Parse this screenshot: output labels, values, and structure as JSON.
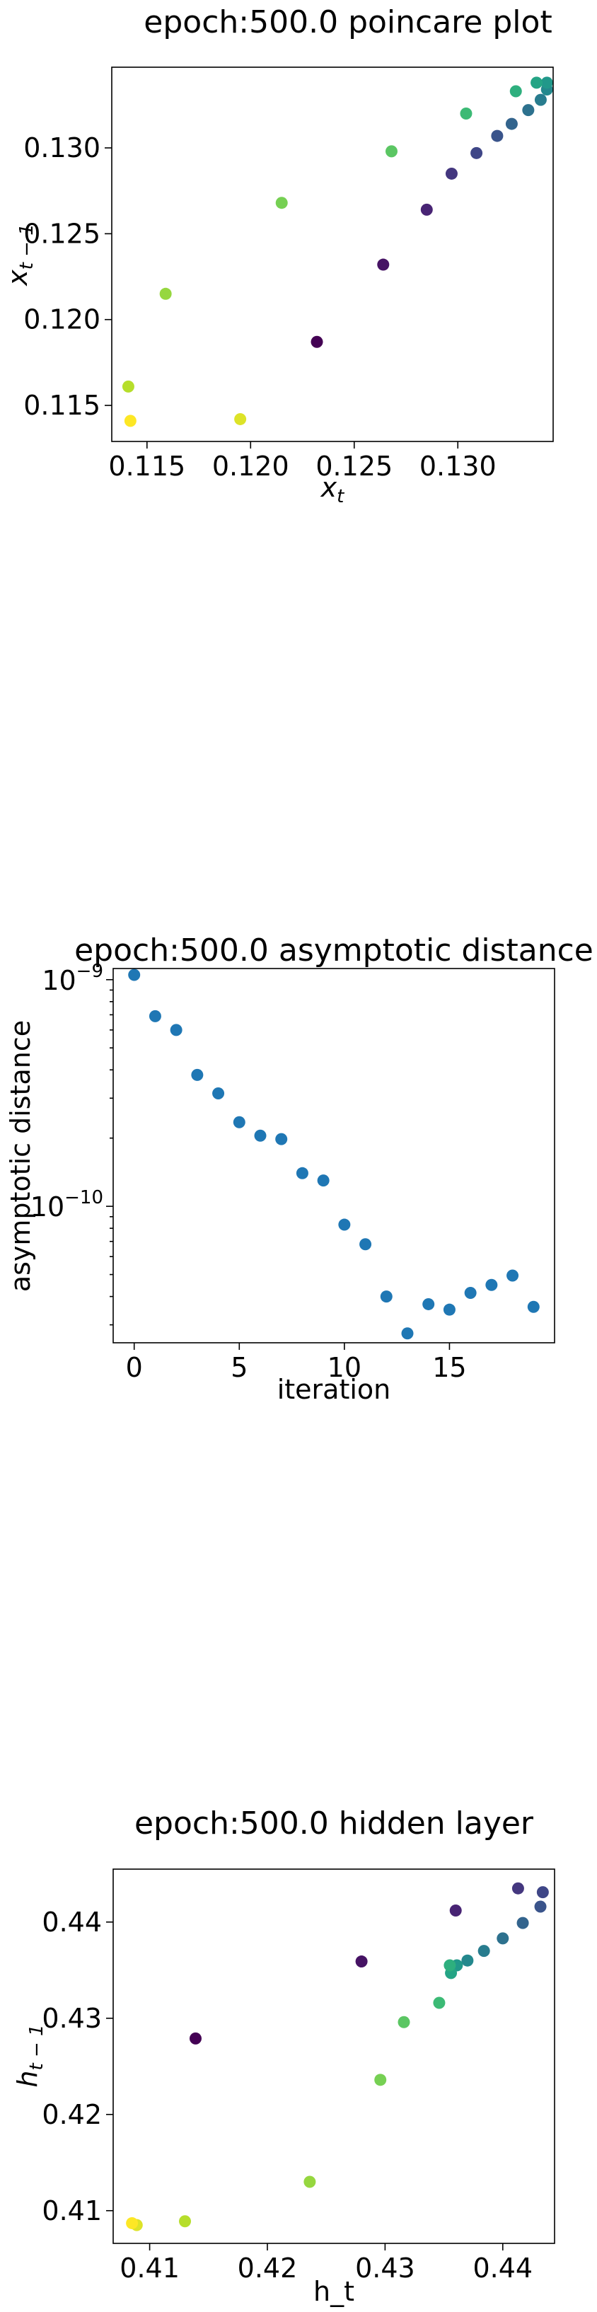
{
  "chart_data": [
    {
      "type": "scatter",
      "title": "epoch:500.0 poincare plot",
      "xlabel": "x",
      "xlabel_sub": "t",
      "ylabel": "x",
      "ylabel_sub": "t − 1",
      "xlim": [
        0.1133,
        0.1346
      ],
      "ylim": [
        0.1129,
        0.1347
      ],
      "xticks": [
        {
          "v": 0.115,
          "label": "0.115"
        },
        {
          "v": 0.12,
          "label": "0.120"
        },
        {
          "v": 0.125,
          "label": "0.125"
        },
        {
          "v": 0.13,
          "label": "0.130"
        }
      ],
      "yticks": [
        {
          "v": 0.115,
          "label": "0.115"
        },
        {
          "v": 0.12,
          "label": "0.120"
        },
        {
          "v": 0.125,
          "label": "0.125"
        },
        {
          "v": 0.13,
          "label": "0.130"
        }
      ],
      "colormap": "viridis",
      "points": [
        {
          "x": 0.1232,
          "y": 0.1187,
          "c": 0.0
        },
        {
          "x": 0.1264,
          "y": 0.1232,
          "c": 0.05
        },
        {
          "x": 0.1285,
          "y": 0.1264,
          "c": 0.1
        },
        {
          "x": 0.1297,
          "y": 0.1285,
          "c": 0.16
        },
        {
          "x": 0.1309,
          "y": 0.1297,
          "c": 0.21
        },
        {
          "x": 0.1319,
          "y": 0.1307,
          "c": 0.26
        },
        {
          "x": 0.1326,
          "y": 0.1314,
          "c": 0.32
        },
        {
          "x": 0.1334,
          "y": 0.1322,
          "c": 0.37
        },
        {
          "x": 0.134,
          "y": 0.1328,
          "c": 0.42
        },
        {
          "x": 0.1343,
          "y": 0.1334,
          "c": 0.47
        },
        {
          "x": 0.1343,
          "y": 0.1338,
          "c": 0.53
        },
        {
          "x": 0.1338,
          "y": 0.1338,
          "c": 0.58
        },
        {
          "x": 0.1328,
          "y": 0.1333,
          "c": 0.63
        },
        {
          "x": 0.1304,
          "y": 0.132,
          "c": 0.68
        },
        {
          "x": 0.1268,
          "y": 0.1298,
          "c": 0.74
        },
        {
          "x": 0.1215,
          "y": 0.1268,
          "c": 0.79
        },
        {
          "x": 0.1159,
          "y": 0.1215,
          "c": 0.84
        },
        {
          "x": 0.1141,
          "y": 0.1161,
          "c": 0.89
        },
        {
          "x": 0.1195,
          "y": 0.1142,
          "c": 0.95
        },
        {
          "x": 0.1142,
          "y": 0.1141,
          "c": 1.0
        }
      ]
    },
    {
      "type": "scatter",
      "title": "epoch:500.0 asymptotic distance",
      "xlabel": "iteration",
      "ylabel": "asymptotic distance",
      "yscale": "log",
      "xlim": [
        -1.0,
        20.0
      ],
      "ylim": [
        2.5e-11,
        1.12e-09
      ],
      "xticks": [
        {
          "v": 0,
          "label": "0"
        },
        {
          "v": 5,
          "label": "5"
        },
        {
          "v": 10,
          "label": "10"
        },
        {
          "v": 15,
          "label": "15"
        }
      ],
      "yticks": [
        {
          "v": 1e-10,
          "base": "10",
          "exp": "−10"
        },
        {
          "v": 1e-09,
          "base": "10",
          "exp": "−9"
        }
      ],
      "color": "#1f77b4",
      "x": [
        0,
        1,
        2,
        3,
        4,
        5,
        6,
        7,
        8,
        9,
        10,
        11,
        12,
        13,
        14,
        15,
        16,
        17,
        18,
        19
      ],
      "y": [
        1.05e-09,
        6.9e-10,
        6e-10,
        3.8e-10,
        3.15e-10,
        2.35e-10,
        2.05e-10,
        1.98e-10,
        1.4e-10,
        1.3e-10,
        8.3e-11,
        6.8e-11,
        4e-11,
        2.75e-11,
        3.7e-11,
        3.5e-11,
        4.15e-11,
        4.5e-11,
        4.95e-11,
        3.6e-11
      ]
    },
    {
      "type": "scatter",
      "title": "epoch:500.0 hidden layer",
      "xlabel": "h_t",
      "ylabel": "h",
      "ylabel_sub": "t − 1",
      "xlim": [
        0.4069,
        0.4444
      ],
      "ylim": [
        0.4066,
        0.4455
      ],
      "xticks": [
        {
          "v": 0.41,
          "label": "0.41"
        },
        {
          "v": 0.42,
          "label": "0.42"
        },
        {
          "v": 0.43,
          "label": "0.43"
        },
        {
          "v": 0.44,
          "label": "0.44"
        }
      ],
      "yticks": [
        {
          "v": 0.41,
          "label": "0.41"
        },
        {
          "v": 0.42,
          "label": "0.42"
        },
        {
          "v": 0.43,
          "label": "0.43"
        },
        {
          "v": 0.44,
          "label": "0.44"
        }
      ],
      "colormap": "viridis",
      "points": [
        {
          "x": 0.4139,
          "y": 0.4279,
          "c": 0.0
        },
        {
          "x": 0.428,
          "y": 0.4359,
          "c": 0.05
        },
        {
          "x": 0.436,
          "y": 0.4412,
          "c": 0.1
        },
        {
          "x": 0.4413,
          "y": 0.4435,
          "c": 0.16
        },
        {
          "x": 0.4434,
          "y": 0.4431,
          "c": 0.21
        },
        {
          "x": 0.4432,
          "y": 0.4416,
          "c": 0.26
        },
        {
          "x": 0.4417,
          "y": 0.4399,
          "c": 0.32
        },
        {
          "x": 0.44,
          "y": 0.4383,
          "c": 0.37
        },
        {
          "x": 0.4384,
          "y": 0.437,
          "c": 0.42
        },
        {
          "x": 0.437,
          "y": 0.436,
          "c": 0.47
        },
        {
          "x": 0.4361,
          "y": 0.4355,
          "c": 0.53
        },
        {
          "x": 0.4356,
          "y": 0.4347,
          "c": 0.58
        },
        {
          "x": 0.4355,
          "y": 0.4355,
          "c": 0.63
        },
        {
          "x": 0.4346,
          "y": 0.4316,
          "c": 0.68
        },
        {
          "x": 0.4316,
          "y": 0.4296,
          "c": 0.74
        },
        {
          "x": 0.4296,
          "y": 0.4236,
          "c": 0.79
        },
        {
          "x": 0.4236,
          "y": 0.413,
          "c": 0.84
        },
        {
          "x": 0.413,
          "y": 0.4089,
          "c": 0.89
        },
        {
          "x": 0.4089,
          "y": 0.4085,
          "c": 0.95
        },
        {
          "x": 0.4085,
          "y": 0.4087,
          "c": 1.0
        }
      ]
    }
  ]
}
